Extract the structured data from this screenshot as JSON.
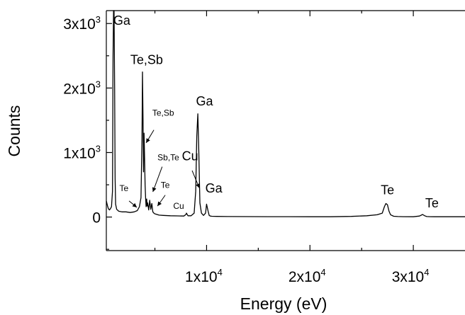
{
  "chart_data": {
    "type": "line",
    "xlabel": "Energy (eV)",
    "ylabel": "Counts",
    "xlim": [
      300,
      35000
    ],
    "ylim": [
      -520,
      3200
    ],
    "x_ticks": [
      {
        "value": 10000,
        "label": "1x10",
        "exp": "4"
      },
      {
        "value": 20000,
        "label": "2x10",
        "exp": "4"
      },
      {
        "value": 30000,
        "label": "3x10",
        "exp": "4"
      }
    ],
    "x_minor_ticks": [
      5000,
      15000,
      25000
    ],
    "y_ticks": [
      {
        "value": 0,
        "label": "0",
        "exp": ""
      },
      {
        "value": 1000,
        "label": "1x10",
        "exp": "3"
      },
      {
        "value": 2000,
        "label": "2x10",
        "exp": "3"
      },
      {
        "value": 3000,
        "label": "3x10",
        "exp": "3"
      }
    ],
    "y_minor_ticks": [
      -500,
      500,
      1500,
      2500
    ],
    "grid": false,
    "series": [
      {
        "color": "#000000",
        "x": [
          300,
          400,
          500,
          600,
          700,
          800,
          900,
          950,
          1000,
          1050,
          1100,
          1150,
          1200,
          1300,
          1500,
          1800,
          2200,
          2600,
          3000,
          3300,
          3500,
          3650,
          3750,
          3800,
          3850,
          3900,
          3950,
          4000,
          4050,
          4100,
          4150,
          4200,
          4250,
          4300,
          4400,
          4500,
          4600,
          4700,
          4800,
          4900,
          5000,
          5100,
          5200,
          5400,
          5800,
          6500,
          7200,
          7800,
          8000,
          8050,
          8200,
          8500,
          8800,
          8950,
          9050,
          9150,
          9250,
          9350,
          9500,
          9700,
          9900,
          10000,
          10150,
          10250,
          10350,
          10500,
          11000,
          12000,
          14000,
          16000,
          18000,
          20000,
          22000,
          24000,
          25500,
          26500,
          27000,
          27200,
          27350,
          27500,
          27650,
          27800,
          28100,
          28500,
          29000,
          30000,
          30600,
          30900,
          31100,
          31300,
          31600,
          32000,
          33000,
          34000,
          35000
        ],
        "y": [
          250,
          180,
          130,
          110,
          130,
          160,
          400,
          2500,
          3200,
          3200,
          2000,
          600,
          200,
          120,
          90,
          80,
          80,
          70,
          80,
          100,
          160,
          300,
          1200,
          2250,
          1500,
          700,
          1300,
          900,
          500,
          300,
          160,
          280,
          170,
          220,
          110,
          260,
          120,
          210,
          80,
          60,
          50,
          45,
          40,
          30,
          25,
          20,
          18,
          16,
          40,
          60,
          20,
          20,
          60,
          400,
          1250,
          1600,
          1000,
          220,
          60,
          25,
          60,
          200,
          90,
          25,
          15,
          12,
          10,
          8,
          7,
          6,
          6,
          5,
          5,
          10,
          20,
          35,
          60,
          160,
          210,
          190,
          90,
          35,
          12,
          8,
          6,
          5,
          15,
          40,
          20,
          8,
          6,
          5,
          4,
          4,
          4
        ]
      }
    ],
    "annotations": [
      {
        "text": "Ga",
        "x": 1800,
        "y": 2980,
        "size": "large"
      },
      {
        "text": "Te,Sb",
        "x": 4200,
        "y": 2370,
        "size": "large"
      },
      {
        "text": "Te,Sb",
        "x": 5800,
        "y": 1570,
        "size": "small"
      },
      {
        "text": "Ga",
        "x": 9800,
        "y": 1730,
        "size": "large"
      },
      {
        "text": "Sb,Te",
        "x": 6300,
        "y": 880,
        "size": "small"
      },
      {
        "text": "Cu",
        "x": 8400,
        "y": 880,
        "size": "large"
      },
      {
        "text": "Te",
        "x": 2000,
        "y": 400,
        "size": "small"
      },
      {
        "text": "Te",
        "x": 6000,
        "y": 450,
        "size": "small"
      },
      {
        "text": "Ga",
        "x": 10700,
        "y": 380,
        "size": "large"
      },
      {
        "text": "Cu",
        "x": 7300,
        "y": 130,
        "size": "small"
      },
      {
        "text": "Te",
        "x": 27500,
        "y": 350,
        "size": "large"
      },
      {
        "text": "Te",
        "x": 31800,
        "y": 150,
        "size": "large"
      }
    ],
    "arrows": [
      {
        "from": [
          4900,
          1350
        ],
        "to": [
          4150,
          1150
        ]
      },
      {
        "from": [
          5700,
          780
        ],
        "to": [
          4800,
          390
        ]
      },
      {
        "from": [
          6000,
          340
        ],
        "to": [
          5250,
          170
        ]
      },
      {
        "from": [
          2500,
          250
        ],
        "to": [
          3250,
          150
        ]
      },
      {
        "from": [
          8600,
          720
        ],
        "to": [
          9300,
          450
        ]
      }
    ]
  }
}
